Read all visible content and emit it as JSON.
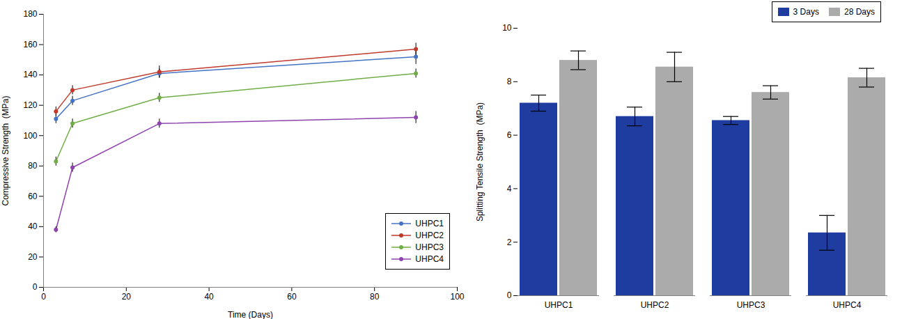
{
  "chart_data": [
    {
      "type": "line",
      "xlabel": "Time (Days)",
      "ylabel": "Compressive Strength  (MPa)",
      "x": [
        3,
        7,
        28,
        90
      ],
      "xlim": [
        0,
        100
      ],
      "xticks": [
        0,
        20,
        40,
        60,
        80,
        100
      ],
      "ylim": [
        0,
        180
      ],
      "yticks": [
        0,
        20,
        40,
        60,
        80,
        100,
        120,
        140,
        160,
        180
      ],
      "grid": false,
      "legend": "lower right",
      "marker": "o",
      "series": [
        {
          "name": "UHPC1",
          "color": "#4472C4",
          "values": [
            111,
            123,
            141,
            152
          ],
          "yerr": [
            3,
            3,
            3,
            5
          ]
        },
        {
          "name": "UHPC2",
          "color": "#C0392B",
          "values": [
            116,
            130,
            142,
            157
          ],
          "yerr": [
            3,
            3,
            4,
            4
          ]
        },
        {
          "name": "UHPC3",
          "color": "#70AD47",
          "values": [
            83,
            108,
            125,
            141
          ],
          "yerr": [
            3,
            3,
            3,
            3
          ]
        },
        {
          "name": "UHPC4",
          "color": "#8E44AD",
          "values": [
            38,
            79,
            108,
            112
          ],
          "yerr": [
            2,
            3,
            3,
            4
          ]
        }
      ]
    },
    {
      "type": "bar",
      "ylabel": "Splitting Tensile Strength  (MPa)",
      "categories": [
        "UHPC1",
        "UHPC2",
        "UHPC3",
        "UHPC4"
      ],
      "ylim": [
        0,
        10
      ],
      "yticks": [
        0,
        2,
        4,
        6,
        8,
        10
      ],
      "grid": false,
      "legend": "upper right",
      "series": [
        {
          "name": "3 Days",
          "color": "#1F3DA0",
          "values": [
            7.2,
            6.7,
            6.55,
            2.35
          ],
          "yerr": [
            0.3,
            0.35,
            0.15,
            0.65
          ]
        },
        {
          "name": "28 Days",
          "color": "#ABABAB",
          "values": [
            8.8,
            8.55,
            7.6,
            8.15
          ],
          "yerr": [
            0.35,
            0.55,
            0.25,
            0.35
          ]
        }
      ]
    }
  ]
}
